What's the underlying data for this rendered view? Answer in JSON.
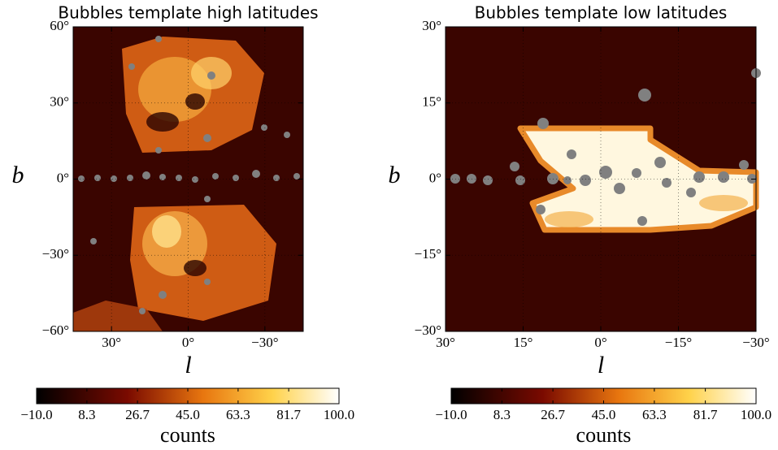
{
  "chart_data": [
    {
      "type": "heatmap",
      "title": "Bubbles template high latitudes",
      "xlabel": "l",
      "ylabel": "b",
      "xlim": [
        45,
        -45
      ],
      "ylim": [
        -60,
        60
      ],
      "xticks": [
        {
          "value": 30,
          "label": "30°"
        },
        {
          "value": 0,
          "label": "0°"
        },
        {
          "value": -30,
          "label": "−30°"
        }
      ],
      "yticks": [
        {
          "value": -60,
          "label": "−60°"
        },
        {
          "value": -30,
          "label": "−30°"
        },
        {
          "value": 0,
          "label": "0°"
        },
        {
          "value": 30,
          "label": "30°"
        },
        {
          "value": 60,
          "label": "60°"
        }
      ],
      "grid": true,
      "colorbar": {
        "label": "counts",
        "lim": [
          -10,
          100
        ],
        "ticks": [
          {
            "value": -10,
            "label": "−10.0"
          },
          8.3,
          26.7,
          {
            "value": 45,
            "label": "45.0"
          },
          63.3,
          81.7,
          {
            "value": 100,
            "label": "100.0"
          }
        ]
      }
    },
    {
      "type": "heatmap",
      "title": "Bubbles template low latitudes",
      "xlabel": "l",
      "ylabel": "b",
      "xlim": [
        30,
        -30
      ],
      "ylim": [
        -30,
        30
      ],
      "xticks": [
        {
          "value": 30,
          "label": "30°"
        },
        {
          "value": 15,
          "label": "15°"
        },
        {
          "value": 0,
          "label": "0°"
        },
        {
          "value": -15,
          "label": "−15°"
        },
        {
          "value": -30,
          "label": "−30°"
        }
      ],
      "yticks": [
        {
          "value": -30,
          "label": "−30°"
        },
        {
          "value": -15,
          "label": "−15°"
        },
        {
          "value": 0,
          "label": "0°"
        },
        {
          "value": 15,
          "label": "15°"
        },
        {
          "value": 30,
          "label": "30°"
        }
      ],
      "grid": true,
      "colorbar": {
        "label": "counts",
        "lim": [
          -10,
          100
        ],
        "ticks": [
          {
            "value": -10,
            "label": "−10.0"
          },
          8.3,
          26.7,
          {
            "value": 45,
            "label": "45.0"
          },
          63.3,
          81.7,
          {
            "value": 100,
            "label": "100.0"
          }
        ]
      }
    }
  ]
}
